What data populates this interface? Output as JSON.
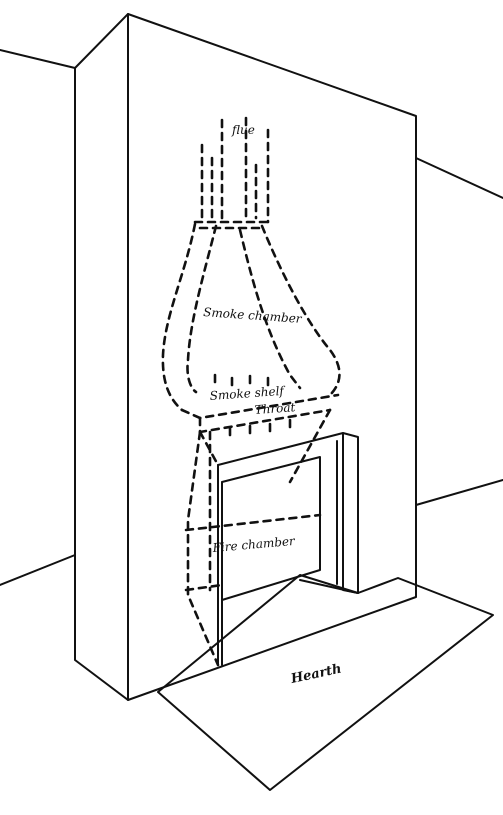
{
  "labels": {
    "flue": "flue",
    "smoke_chamber": "Smoke chamber",
    "smoke_shelf": "Smoke shelf",
    "throat": "Throat",
    "fire_chamber": "Fire chamber",
    "hearth": "Hearth"
  }
}
